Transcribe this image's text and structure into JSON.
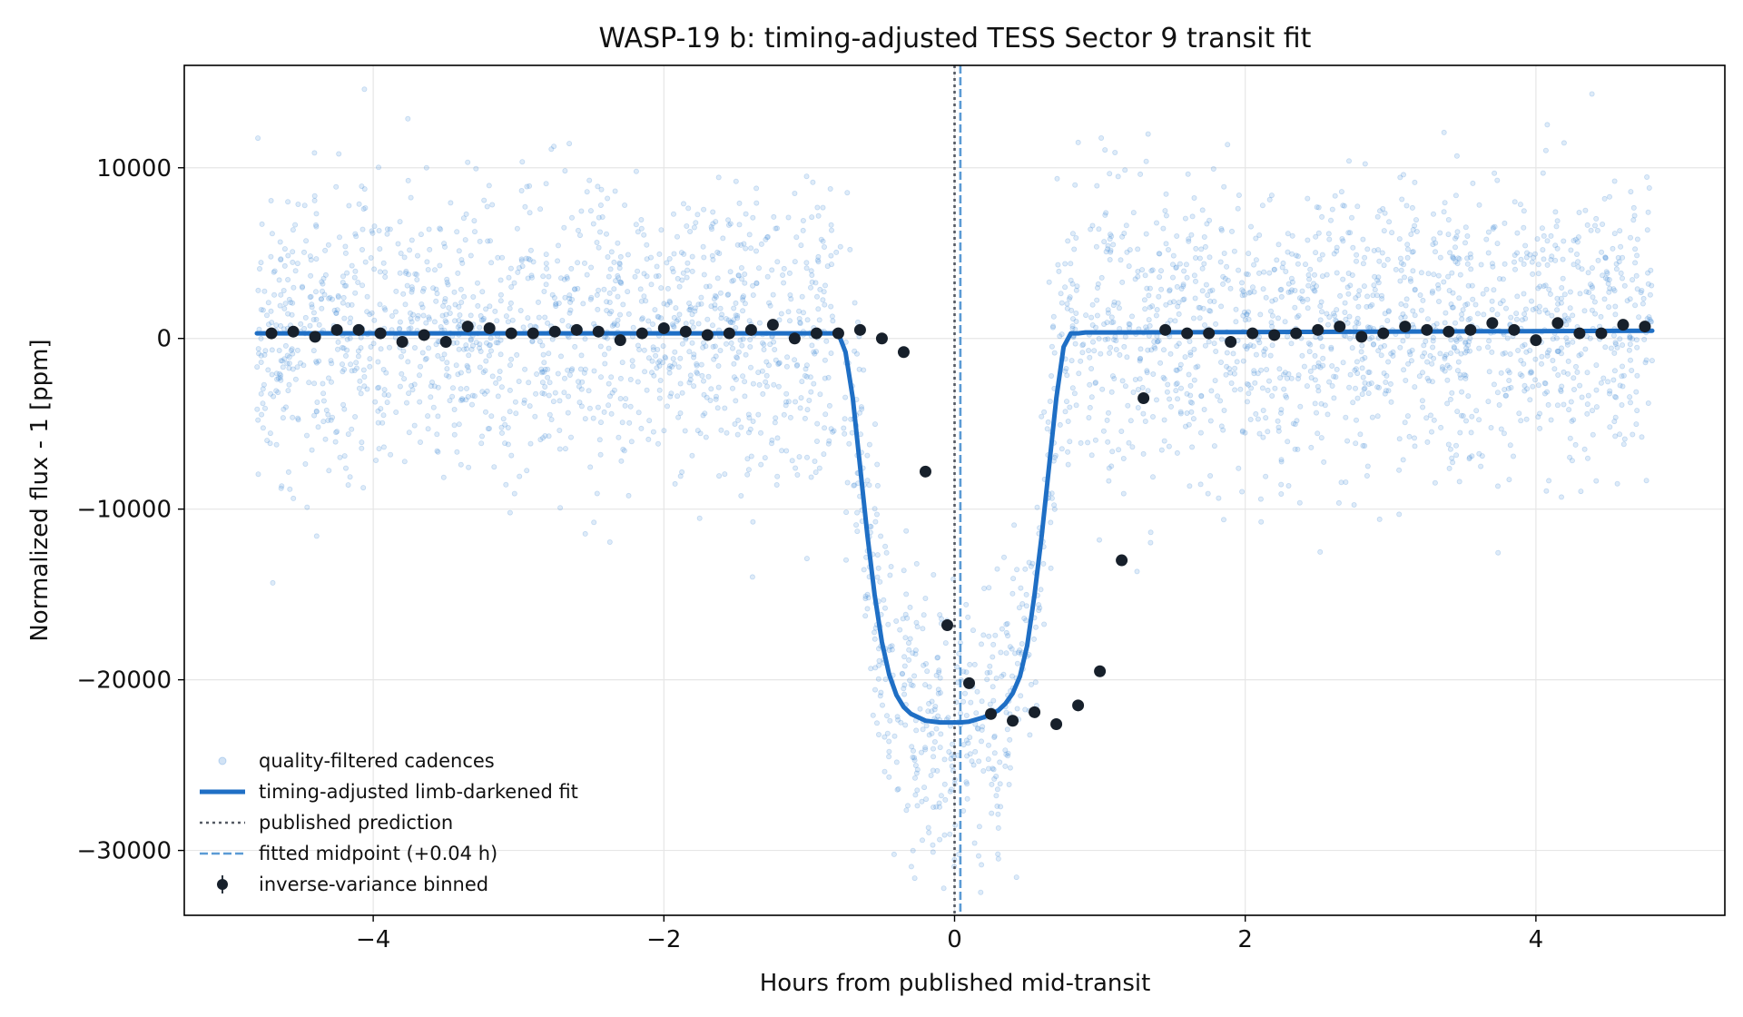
{
  "chart_data": {
    "type": "scatter",
    "title": "WASP-19 b: timing-adjusted TESS Sector 9 transit fit",
    "xlabel": "Hours from published mid-transit",
    "ylabel": "Normalized flux - 1 [ppm]",
    "xlim": [
      -5.3,
      5.3
    ],
    "ylim": [
      -33800,
      16000
    ],
    "x_ticks": [
      -4,
      -2,
      0,
      2,
      4
    ],
    "x_tick_labels": [
      "−4",
      "−2",
      "0",
      "2",
      "4"
    ],
    "y_ticks": [
      -30000,
      -20000,
      -10000,
      0,
      10000
    ],
    "y_tick_labels": [
      "−30000",
      "−20000",
      "−10000",
      "0",
      "10000"
    ],
    "grid": true,
    "legend_position": "lower-left",
    "colors": {
      "cadences": "#4a90d9",
      "fit": "#1f6fc5",
      "published": "#555a63",
      "fitted_midpoint": "#5b9bd5",
      "binned": "#17202b"
    },
    "series": [
      {
        "name": "quality-filtered cadences",
        "kind": "scatter",
        "x_range": [
          -4.8,
          4.8
        ],
        "scatter_sigma_ppm": 4200
      },
      {
        "name": "timing-adjusted limb-darkened fit",
        "kind": "line",
        "x": [
          -4.8,
          -1.0,
          -0.8,
          -0.75,
          -0.7,
          -0.65,
          -0.6,
          -0.55,
          -0.5,
          -0.45,
          -0.4,
          -0.35,
          -0.3,
          -0.2,
          -0.1,
          0.0,
          0.04,
          0.1,
          0.2,
          0.3,
          0.35,
          0.4,
          0.45,
          0.5,
          0.55,
          0.6,
          0.65,
          0.7,
          0.75,
          0.8,
          0.85,
          0.9,
          1.1,
          4.8
        ],
        "y": [
          300,
          300,
          300,
          -800,
          -3500,
          -7500,
          -11500,
          -15000,
          -17800,
          -19700,
          -20900,
          -21600,
          -22000,
          -22400,
          -22500,
          -22500,
          -22500,
          -22450,
          -22200,
          -21800,
          -21400,
          -20800,
          -19800,
          -18000,
          -15000,
          -11500,
          -7500,
          -3500,
          -500,
          300,
          300,
          350,
          350,
          450
        ]
      },
      {
        "name": "published prediction",
        "kind": "vline",
        "x": 0.0
      },
      {
        "name": "fitted midpoint (+0.04 h)",
        "kind": "vline",
        "x": 0.04
      },
      {
        "name": "inverse-variance binned",
        "kind": "points",
        "x": [
          -4.7,
          -4.55,
          -4.4,
          -4.25,
          -4.1,
          -3.95,
          -3.8,
          -3.65,
          -3.5,
          -3.35,
          -3.2,
          -3.05,
          -2.9,
          -2.75,
          -2.6,
          -2.45,
          -2.3,
          -2.15,
          -2.0,
          -1.85,
          -1.7,
          -1.55,
          -1.4,
          -1.25,
          -1.1,
          -0.95,
          -0.8,
          -0.65,
          -0.5,
          -0.35,
          -0.2,
          -0.05,
          0.1,
          0.25,
          0.4,
          0.55,
          0.7,
          0.85,
          1.0,
          1.15,
          1.3,
          1.45,
          1.6,
          1.75,
          1.9,
          2.05,
          2.2,
          2.35,
          2.5,
          2.65,
          2.8,
          2.95,
          3.1,
          3.25,
          3.4,
          3.55,
          3.7,
          3.85,
          4.0,
          4.15,
          4.3,
          4.45,
          4.6,
          4.75
        ],
        "y": [
          300,
          400,
          100,
          500,
          500,
          300,
          -200,
          200,
          -200,
          700,
          600,
          300,
          300,
          400,
          500,
          400,
          -100,
          300,
          600,
          400,
          200,
          300,
          500,
          800,
          0,
          300,
          300,
          500,
          0,
          -800,
          -7800,
          -16800,
          -20200,
          -22000,
          -22400,
          -21900,
          -22600,
          -21500,
          -19500,
          -13000,
          -3500,
          500,
          300,
          300,
          -200,
          300,
          200,
          300,
          500,
          700,
          100,
          300,
          700,
          500,
          400,
          500,
          900,
          500,
          -100,
          900,
          300,
          300,
          800,
          700
        ]
      }
    ]
  }
}
